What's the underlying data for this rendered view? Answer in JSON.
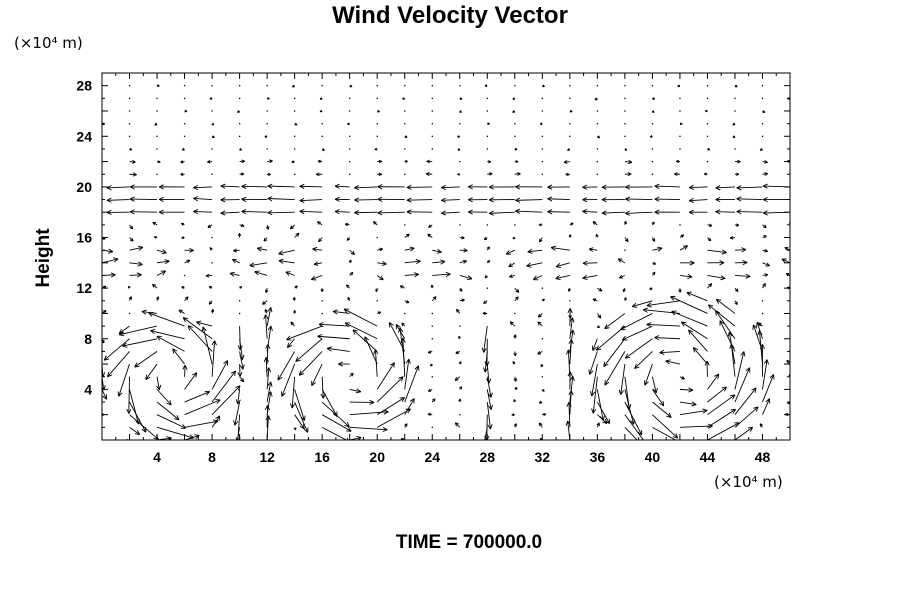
{
  "chart_data": {
    "type": "quiver",
    "title": "Wind Velocity Vector",
    "ylabel": "Height",
    "x_unit": "(×10⁴ m)",
    "y_unit": "(×10⁴ m)",
    "xlim": [
      0,
      50
    ],
    "ylim": [
      0,
      29
    ],
    "xticks": [
      4,
      8,
      12,
      16,
      20,
      24,
      28,
      32,
      36,
      40,
      44,
      48
    ],
    "yticks": [
      4,
      8,
      12,
      16,
      20,
      24,
      28
    ],
    "grid_spacing_x": 2,
    "grid_spacing_y": 1,
    "features": {
      "inversion_layer_height": 19,
      "vortices": [
        {
          "x_center": 5,
          "y_center": 5,
          "radius": 4.5
        },
        {
          "x_center": 18,
          "y_center": 5,
          "radius": 4.5
        },
        {
          "x_center": 42,
          "y_center": 5,
          "radius": 6.0
        }
      ]
    },
    "footer": "TIME = 700000.0"
  }
}
